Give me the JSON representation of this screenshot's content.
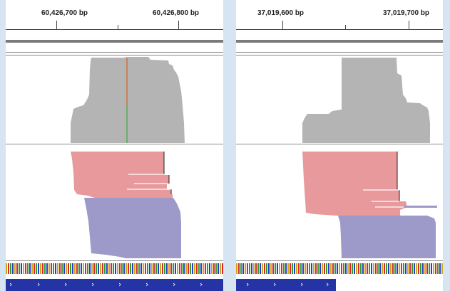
{
  "left_panel": {
    "coord_labels": [
      "60,426,700 bp",
      "60,426,800 bp"
    ]
  },
  "right_panel": {
    "coord_labels": [
      "37,019,600 bp",
      "37,019,700 bp"
    ]
  },
  "colors": {
    "coverage": "#b4b4b4",
    "read_forward": "#e7999b",
    "read_reverse": "#9d99c9",
    "gene": "#2434a4",
    "mismatch_top": "#c8641e",
    "mismatch_bottom": "#3fa83f"
  },
  "icons": {
    "gene_direction": "chevron-right-icon"
  }
}
